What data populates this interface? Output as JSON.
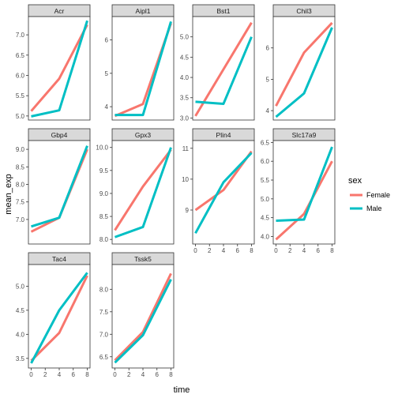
{
  "chart_data": {
    "type": "line",
    "facet_by": "gene",
    "xlabel": "time",
    "ylabel": "mean_exp",
    "x_ticks": [
      0,
      2,
      4,
      6,
      8
    ],
    "grid": false,
    "legend": {
      "title": "sex",
      "position": "right"
    },
    "series_styles": [
      {
        "name": "Female",
        "color": "#F8766D"
      },
      {
        "name": "Male",
        "color": "#00BFC4"
      }
    ],
    "panels": [
      {
        "title": "Acr",
        "ylim": [
          4.9,
          7.45
        ],
        "yticks": [
          "5.0",
          "5.5",
          "6.0",
          "6.5",
          "7.0"
        ],
        "x": [
          0,
          4,
          8
        ],
        "series": [
          {
            "name": "Female",
            "values": [
              5.12,
              5.92,
              7.25
            ]
          },
          {
            "name": "Male",
            "values": [
              4.99,
              5.14,
              7.35
            ]
          }
        ]
      },
      {
        "title": "Aipl1",
        "ylim": [
          3.6,
          6.7
        ],
        "yticks": [
          "4",
          "5",
          "6"
        ],
        "x": [
          0,
          4,
          8
        ],
        "series": [
          {
            "name": "Female",
            "values": [
              3.72,
              4.08,
              6.5
            ]
          },
          {
            "name": "Male",
            "values": [
              3.75,
              3.75,
              6.55
            ]
          }
        ]
      },
      {
        "title": "Bst1",
        "ylim": [
          2.95,
          5.5
        ],
        "yticks": [
          "3.0",
          "3.5",
          "4.0",
          "4.5",
          "5.0"
        ],
        "x": [
          0,
          4,
          8
        ],
        "series": [
          {
            "name": "Female",
            "values": [
              3.05,
              4.2,
              5.35
            ]
          },
          {
            "name": "Male",
            "values": [
              3.4,
              3.35,
              5.0
            ]
          }
        ]
      },
      {
        "title": "Chil3",
        "ylim": [
          3.7,
          7.0
        ],
        "yticks": [
          "4",
          "5",
          "6"
        ],
        "x": [
          0,
          4,
          8
        ],
        "series": [
          {
            "name": "Female",
            "values": [
              4.15,
              5.85,
              6.8
            ]
          },
          {
            "name": "Male",
            "values": [
              3.8,
              4.55,
              6.65
            ]
          }
        ]
      },
      {
        "title": "Gbp4",
        "ylim": [
          6.3,
          9.25
        ],
        "yticks": [
          "7.0",
          "7.5",
          "8.0",
          "8.5",
          "9.0"
        ],
        "x": [
          0,
          4,
          8
        ],
        "series": [
          {
            "name": "Female",
            "values": [
              6.65,
              7.05,
              9.0
            ]
          },
          {
            "name": "Male",
            "values": [
              6.8,
              7.05,
              9.1
            ]
          }
        ]
      },
      {
        "title": "Gpx3",
        "ylim": [
          7.9,
          10.15
        ],
        "yticks": [
          "8.0",
          "8.5",
          "9.0",
          "9.5",
          "10.0"
        ],
        "x": [
          0,
          4,
          8
        ],
        "series": [
          {
            "name": "Female",
            "values": [
              8.2,
              9.15,
              9.95
            ]
          },
          {
            "name": "Male",
            "values": [
              8.05,
              8.27,
              10.0
            ]
          }
        ]
      },
      {
        "title": "Plin4",
        "ylim": [
          7.9,
          11.25
        ],
        "yticks": [
          "9",
          "10",
          "11"
        ],
        "x": [
          0,
          4,
          8
        ],
        "series": [
          {
            "name": "Female",
            "values": [
              9.0,
              9.65,
              10.9
            ]
          },
          {
            "name": "Male",
            "values": [
              8.25,
              9.9,
              10.85
            ]
          }
        ]
      },
      {
        "title": "Slc17a9",
        "ylim": [
          3.8,
          6.55
        ],
        "yticks": [
          "3.5",
          "4.0",
          "4.5",
          "5.0",
          "5.5",
          "6.0",
          "6.5"
        ],
        "x": [
          0,
          4,
          8
        ],
        "series": [
          {
            "name": "Female",
            "values": [
              3.92,
              4.6,
              6.0
            ]
          },
          {
            "name": "Male",
            "values": [
              4.42,
              4.45,
              6.38
            ]
          }
        ]
      },
      {
        "title": "Tac4",
        "ylim": [
          3.3,
          5.45
        ],
        "yticks": [
          "3.5",
          "4.0",
          "4.5",
          "5.0"
        ],
        "x": [
          0,
          4,
          8
        ],
        "series": [
          {
            "name": "Female",
            "values": [
              3.45,
              4.03,
              5.22
            ]
          },
          {
            "name": "Male",
            "values": [
              3.4,
              4.5,
              5.28
            ]
          }
        ]
      },
      {
        "title": "Tssk5",
        "ylim": [
          6.25,
          8.55
        ],
        "yticks": [
          "6.5",
          "7.0",
          "7.5",
          "8.0"
        ],
        "x": [
          0,
          4,
          8
        ],
        "series": [
          {
            "name": "Female",
            "values": [
              6.42,
              7.05,
              8.35
            ]
          },
          {
            "name": "Male",
            "values": [
              6.37,
              6.98,
              8.22
            ]
          }
        ]
      }
    ]
  }
}
